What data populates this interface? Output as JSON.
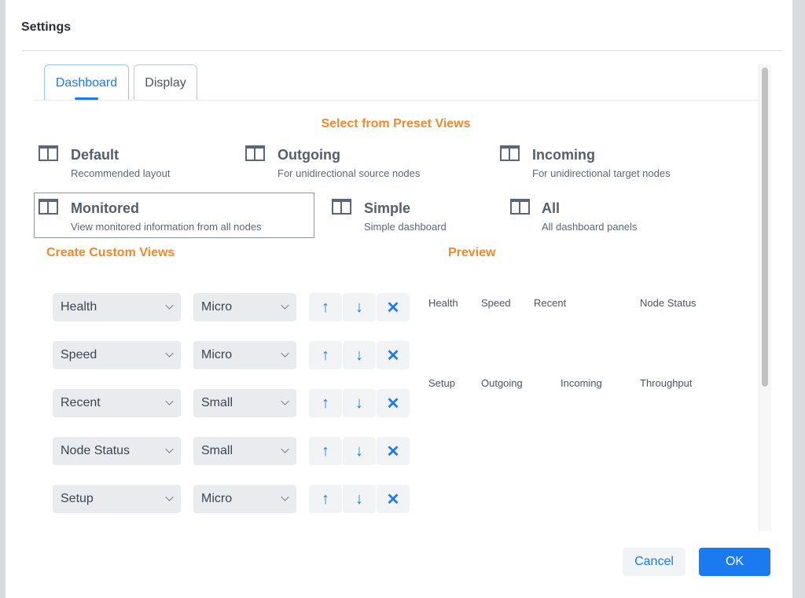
{
  "dialog": {
    "title": "Settings"
  },
  "tabs": [
    {
      "label": "Dashboard",
      "active": true
    },
    {
      "label": "Display",
      "active": false
    }
  ],
  "presets": {
    "heading": "Select from Preset Views",
    "items": [
      {
        "title": "Default",
        "subtitle": "Recommended layout",
        "icon": "layout-icon"
      },
      {
        "title": "Outgoing",
        "subtitle": "For unidirectional source nodes",
        "icon": "layout-icon"
      },
      {
        "title": "Incoming",
        "subtitle": "For unidirectional target nodes",
        "icon": "layout-icon"
      },
      {
        "title": "Monitored",
        "subtitle": "View monitored information from all nodes",
        "icon": "layout-icon",
        "selected": true
      },
      {
        "title": "Simple",
        "subtitle": "Simple dashboard",
        "icon": "layout-icon"
      },
      {
        "title": "All",
        "subtitle": "All dashboard panels",
        "icon": "layout-icon"
      }
    ]
  },
  "custom": {
    "heading": "Create Custom Views",
    "rows": [
      {
        "panel": "Health",
        "size": "Micro"
      },
      {
        "panel": "Speed",
        "size": "Micro"
      },
      {
        "panel": "Recent",
        "size": "Small"
      },
      {
        "panel": "Node Status",
        "size": "Small"
      },
      {
        "panel": "Setup",
        "size": "Micro"
      }
    ],
    "actions": {
      "up": "↑",
      "down": "↓",
      "remove": "✕"
    }
  },
  "preview": {
    "heading": "Preview",
    "rows": [
      [
        "Health",
        "Speed",
        "Recent",
        "Node Status"
      ],
      [
        "Setup",
        "Outgoing",
        "Incoming",
        "Throughput"
      ]
    ]
  },
  "footer": {
    "cancel": "Cancel",
    "ok": "OK"
  },
  "colors": {
    "accent": "#1a7af0",
    "heading": "#f08a2c"
  }
}
